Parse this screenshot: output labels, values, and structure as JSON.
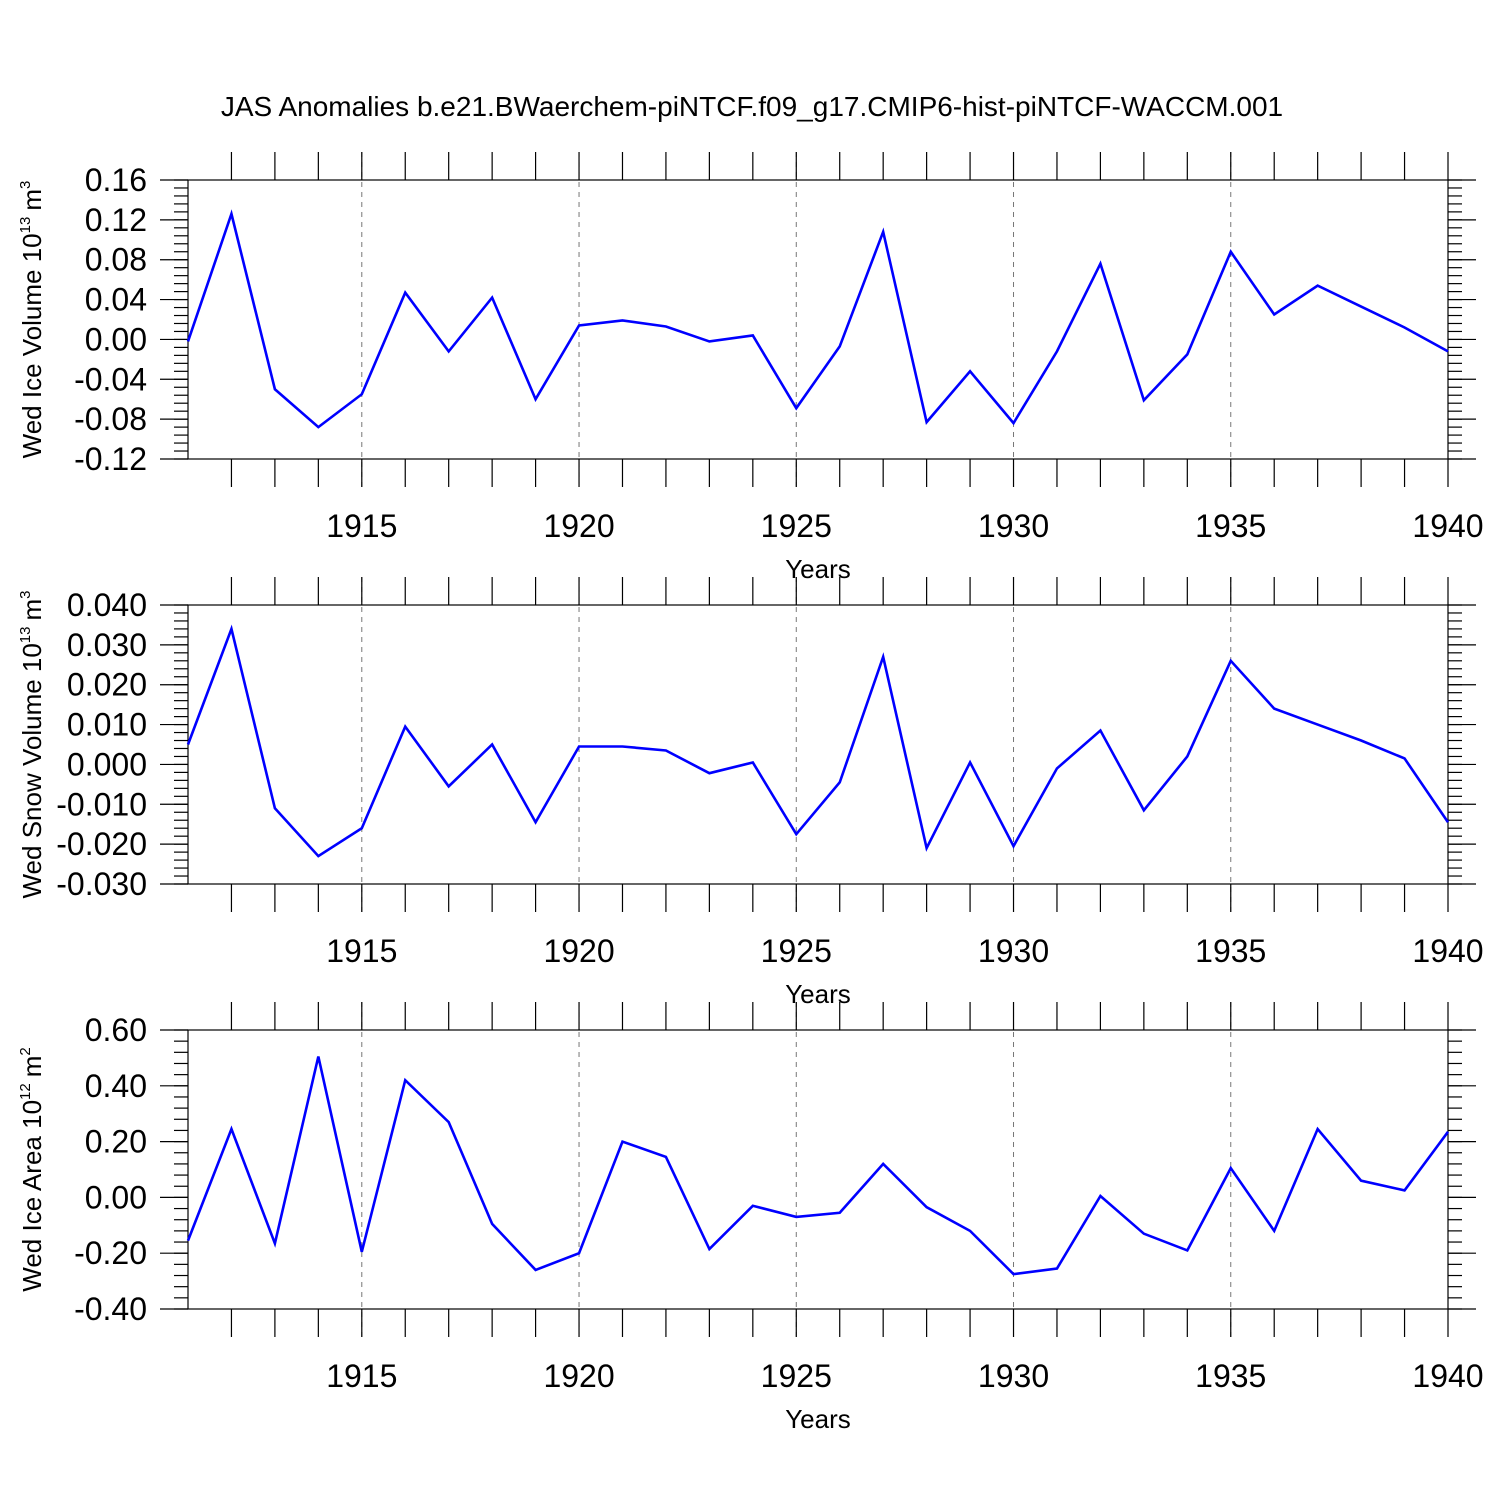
{
  "title": "JAS Anomalies b.e21.BWaerchem-piNTCF.f09_g17.CMIP6-hist-piNTCF-WACCM.001",
  "colors": {
    "line": "#0000ff",
    "axis": "#000000",
    "grid": "#777777"
  },
  "chart_data": [
    {
      "type": "line",
      "ylabel": "Wed Ice Volume 10",
      "ylabel_exp": "13",
      "ylabel_unit": "m",
      "ylabel_unit_exp": "3",
      "xlabel": "Years",
      "xlim": [
        1911,
        1940
      ],
      "ylim": [
        -0.12,
        0.16
      ],
      "x_ticks": [
        1915,
        1920,
        1925,
        1930,
        1935,
        1940
      ],
      "x_tick_labels": [
        "1915",
        "1920",
        "1925",
        "1930",
        "1935",
        "1940"
      ],
      "y_ticks": [
        -0.12,
        -0.08,
        -0.04,
        0.0,
        0.04,
        0.08,
        0.12,
        0.16
      ],
      "y_tick_labels": [
        "-0.12",
        "-0.08",
        "-0.04",
        "0.00",
        "0.04",
        "0.08",
        "0.12",
        "0.16"
      ],
      "y_minor_step": 0.008,
      "x": [
        1911,
        1912,
        1913,
        1914,
        1915,
        1916,
        1917,
        1918,
        1919,
        1920,
        1921,
        1922,
        1923,
        1924,
        1925,
        1926,
        1927,
        1928,
        1929,
        1930,
        1931,
        1932,
        1933,
        1934,
        1935,
        1936,
        1937,
        1938,
        1939,
        1940
      ],
      "series": [
        {
          "name": "Wed Ice Volume",
          "values": [
            -0.002,
            0.126,
            -0.05,
            -0.088,
            -0.055,
            0.047,
            -0.012,
            0.042,
            -0.06,
            0.014,
            0.019,
            0.013,
            -0.002,
            0.004,
            -0.069,
            -0.007,
            0.108,
            -0.083,
            -0.032,
            -0.084,
            -0.012,
            0.076,
            -0.061,
            -0.015,
            0.088,
            0.025,
            0.054,
            0.033,
            0.012,
            -0.012
          ]
        }
      ]
    },
    {
      "type": "line",
      "ylabel": "Wed Snow Volume 10",
      "ylabel_exp": "13",
      "ylabel_unit": "m",
      "ylabel_unit_exp": "3",
      "xlabel": "Years",
      "xlim": [
        1911,
        1940
      ],
      "ylim": [
        -0.03,
        0.04
      ],
      "x_ticks": [
        1915,
        1920,
        1925,
        1930,
        1935,
        1940
      ],
      "x_tick_labels": [
        "1915",
        "1920",
        "1925",
        "1930",
        "1935",
        "1940"
      ],
      "y_ticks": [
        -0.03,
        -0.02,
        -0.01,
        0.0,
        0.01,
        0.02,
        0.03,
        0.04
      ],
      "y_tick_labels": [
        "-0.030",
        "-0.020",
        "-0.010",
        "0.000",
        "0.010",
        "0.020",
        "0.030",
        "0.040"
      ],
      "y_minor_step": 0.002,
      "x": [
        1911,
        1912,
        1913,
        1914,
        1915,
        1916,
        1917,
        1918,
        1919,
        1920,
        1921,
        1922,
        1923,
        1924,
        1925,
        1926,
        1927,
        1928,
        1929,
        1930,
        1931,
        1932,
        1933,
        1934,
        1935,
        1936,
        1937,
        1938,
        1939,
        1940
      ],
      "series": [
        {
          "name": "Wed Snow Volume",
          "values": [
            0.005,
            0.034,
            -0.011,
            -0.023,
            -0.016,
            0.0095,
            -0.0055,
            0.005,
            -0.0145,
            0.0045,
            0.0045,
            0.0035,
            -0.0022,
            0.0005,
            -0.0175,
            -0.0045,
            0.027,
            -0.021,
            0.0005,
            -0.0205,
            -0.001,
            0.0085,
            -0.0115,
            0.002,
            0.026,
            0.014,
            0.01,
            0.006,
            0.0015,
            -0.0145
          ]
        }
      ]
    },
    {
      "type": "line",
      "ylabel": "Wed Ice Area 10",
      "ylabel_exp": "12",
      "ylabel_unit": "m",
      "ylabel_unit_exp": "2",
      "xlabel": "Years",
      "xlim": [
        1911,
        1940
      ],
      "ylim": [
        -0.4,
        0.6
      ],
      "x_ticks": [
        1915,
        1920,
        1925,
        1930,
        1935,
        1940
      ],
      "x_tick_labels": [
        "1915",
        "1920",
        "1925",
        "1930",
        "1935",
        "1940"
      ],
      "y_ticks": [
        -0.4,
        -0.2,
        0.0,
        0.2,
        0.4,
        0.6
      ],
      "y_tick_labels": [
        "-0.40",
        "-0.20",
        "0.00",
        "0.20",
        "0.40",
        "0.60"
      ],
      "y_minor_step": 0.04,
      "x": [
        1911,
        1912,
        1913,
        1914,
        1915,
        1916,
        1917,
        1918,
        1919,
        1920,
        1921,
        1922,
        1923,
        1924,
        1925,
        1926,
        1927,
        1928,
        1929,
        1930,
        1931,
        1932,
        1933,
        1934,
        1935,
        1936,
        1937,
        1938,
        1939,
        1940
      ],
      "series": [
        {
          "name": "Wed Ice Area",
          "values": [
            -0.155,
            0.245,
            -0.165,
            0.505,
            -0.195,
            0.42,
            0.27,
            -0.095,
            -0.26,
            -0.2,
            0.2,
            0.145,
            -0.185,
            -0.03,
            -0.07,
            -0.055,
            0.12,
            -0.035,
            -0.12,
            -0.275,
            -0.255,
            0.005,
            -0.13,
            -0.19,
            0.105,
            -0.12,
            0.245,
            0.06,
            0.025,
            0.235
          ]
        }
      ]
    }
  ]
}
